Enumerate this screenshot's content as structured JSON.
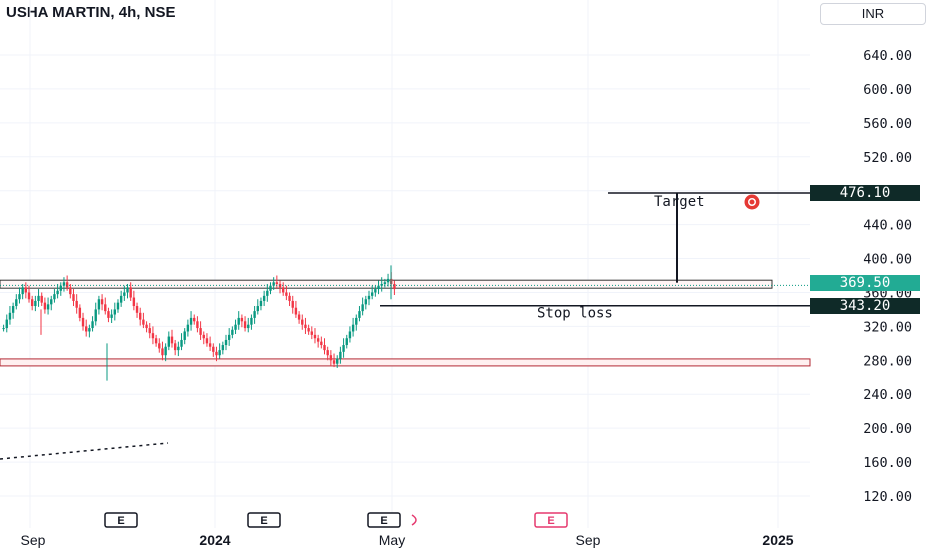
{
  "header": {
    "title": "USHA MARTIN, 4h, NSE",
    "currency": "INR"
  },
  "colors": {
    "up": "#089981",
    "down": "#f23645",
    "zone": "#b22833",
    "dark_badge": "#0f2a28",
    "last_badge": "#22ab94"
  },
  "chart_data": {
    "type": "candlestick",
    "yticks": [
      "640.00",
      "600.00",
      "560.00",
      "520.00",
      "480.00",
      "440.00",
      "400.00",
      "360.00",
      "320.00",
      "280.00",
      "240.00",
      "200.00",
      "160.00",
      "120.00"
    ],
    "xticks": [
      "Sep",
      "2024",
      "May",
      "Sep",
      "2025"
    ],
    "ylim": [
      100,
      680
    ],
    "grid": true,
    "price_labels": {
      "target": "476.10",
      "last": "369.50",
      "stop": "343.20"
    },
    "annotations": {
      "target_text": "Target",
      "stop_text": "Stop loss"
    },
    "resistance_zone": [
      368,
      378
    ],
    "support_zone": [
      276,
      284
    ],
    "earnings_marker": "E",
    "candles_close_path": [
      318,
      328,
      336,
      344,
      352,
      358,
      366,
      360,
      352,
      344,
      350,
      356,
      348,
      340,
      346,
      352,
      358,
      362,
      368,
      372,
      366,
      358,
      350,
      342,
      330,
      320,
      314,
      318,
      326,
      340,
      352,
      346,
      338,
      330,
      334,
      340,
      348,
      356,
      360,
      366,
      354,
      344,
      336,
      328,
      322,
      318,
      312,
      306,
      300,
      294,
      286,
      296,
      308,
      300,
      292,
      296,
      304,
      314,
      322,
      330,
      326,
      318,
      310,
      306,
      300,
      296,
      290,
      286,
      292,
      298,
      304,
      310,
      316,
      322,
      330,
      326,
      318,
      322,
      330,
      338,
      344,
      350,
      356,
      362,
      368,
      372,
      370,
      366,
      360,
      356,
      350,
      342,
      334,
      328,
      322,
      318,
      314,
      310,
      306,
      302,
      298,
      292,
      286,
      280,
      276,
      282,
      290,
      298,
      306,
      314,
      322,
      330,
      338,
      346,
      352,
      356,
      360,
      364,
      368,
      370,
      372,
      376,
      370,
      364
    ]
  }
}
